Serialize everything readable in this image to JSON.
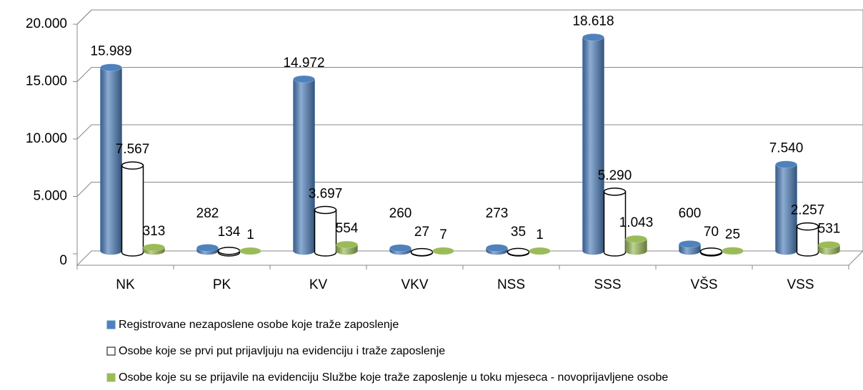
{
  "chart_data": {
    "type": "bar3d",
    "categories": [
      "NK",
      "PK",
      "KV",
      "VKV",
      "NSS",
      "SSS",
      "VŠS",
      "VSS"
    ],
    "series": [
      {
        "name": "Registrovane nezaposlene osobe koje traže zaposlenje",
        "color": "#4f81bd",
        "edgecolor": "#4f81bd",
        "values": [
          15989,
          282,
          14972,
          260,
          273,
          18618,
          600,
          7540
        ],
        "value_labels": [
          "15.989",
          "282",
          "14.972",
          "260",
          "273",
          "18.618",
          "600",
          "7.540"
        ]
      },
      {
        "name": "Osobe koje se prvi put prijavljuju na evidenciju i traže zaposlenje",
        "color": "#ffffff",
        "edgecolor": "#000000",
        "values": [
          7567,
          134,
          3697,
          27,
          35,
          5290,
          70,
          2257
        ],
        "value_labels": [
          "7.567",
          "134",
          "3.697",
          "27",
          "35",
          "5.290",
          "70",
          "2.257"
        ]
      },
      {
        "name": "Osobe koje su se prijavile na evidenciju Službe koje traže zaposlenje u toku mjeseca - novoprijavljene osobe",
        "color": "#9bbb59",
        "edgecolor": "#9bbb59",
        "values": [
          313,
          1,
          554,
          7,
          1,
          1043,
          25,
          531
        ],
        "value_labels": [
          "313",
          "1",
          "554",
          "7",
          "1",
          "1.043",
          "25",
          "531"
        ]
      }
    ],
    "ylim": [
      0,
      20000
    ],
    "yticks": [
      0,
      {
        "value": 5000,
        "label": "5.000"
      },
      {
        "value": 10000,
        "label": "10.000"
      },
      {
        "value": 15000,
        "label": "15.000"
      },
      {
        "value": 20000,
        "label": "20.000"
      }
    ],
    "grid": true,
    "legend": "bottom"
  }
}
